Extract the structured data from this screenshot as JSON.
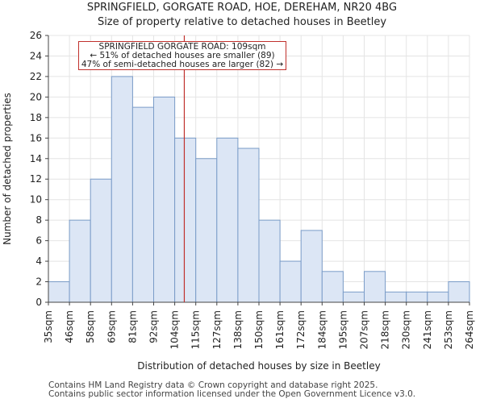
{
  "header": {
    "title": "SPRINGFIELD, GORGATE ROAD, HOE, DEREHAM, NR20 4BG",
    "subtitle": "Size of property relative to detached houses in Beetley"
  },
  "chart_data": {
    "type": "bar",
    "title": "SPRINGFIELD, GORGATE ROAD, HOE, DEREHAM, NR20 4BG",
    "subtitle": "Size of property relative to detached houses in Beetley",
    "xlabel": "Distribution of detached houses by size in Beetley",
    "ylabel": "Number of detached properties",
    "bin_edges": [
      35,
      46,
      58,
      69,
      81,
      92,
      104,
      115,
      127,
      138,
      150,
      161,
      172,
      184,
      195,
      207,
      218,
      230,
      241,
      253,
      264
    ],
    "tick_labels": [
      "35sqm",
      "46sqm",
      "58sqm",
      "69sqm",
      "81sqm",
      "92sqm",
      "104sqm",
      "115sqm",
      "127sqm",
      "138sqm",
      "150sqm",
      "161sqm",
      "172sqm",
      "184sqm",
      "195sqm",
      "207sqm",
      "218sqm",
      "230sqm",
      "241sqm",
      "253sqm",
      "264sqm"
    ],
    "values": [
      2,
      8,
      12,
      22,
      19,
      20,
      16,
      14,
      16,
      15,
      8,
      4,
      7,
      3,
      1,
      3,
      1,
      1,
      1,
      2
    ],
    "ylim": [
      0,
      26
    ],
    "yticks": [
      0,
      2,
      4,
      6,
      8,
      10,
      12,
      14,
      16,
      18,
      20,
      22,
      24,
      26
    ],
    "grid": true,
    "bar_color": "#dce6f5",
    "bar_edge_color": "#7a9cc8",
    "marker": {
      "value": 109,
      "color": "#c0302c"
    },
    "annotation": {
      "line1": "SPRINGFIELD GORGATE ROAD: 109sqm",
      "line2": "← 51% of detached houses are smaller (89)",
      "line3": "47% of semi-detached houses are larger (82) →"
    }
  },
  "footer": {
    "line1": "Contains HM Land Registry data © Crown copyright and database right 2025.",
    "line2": "Contains public sector information licensed under the Open Government Licence v3.0."
  }
}
